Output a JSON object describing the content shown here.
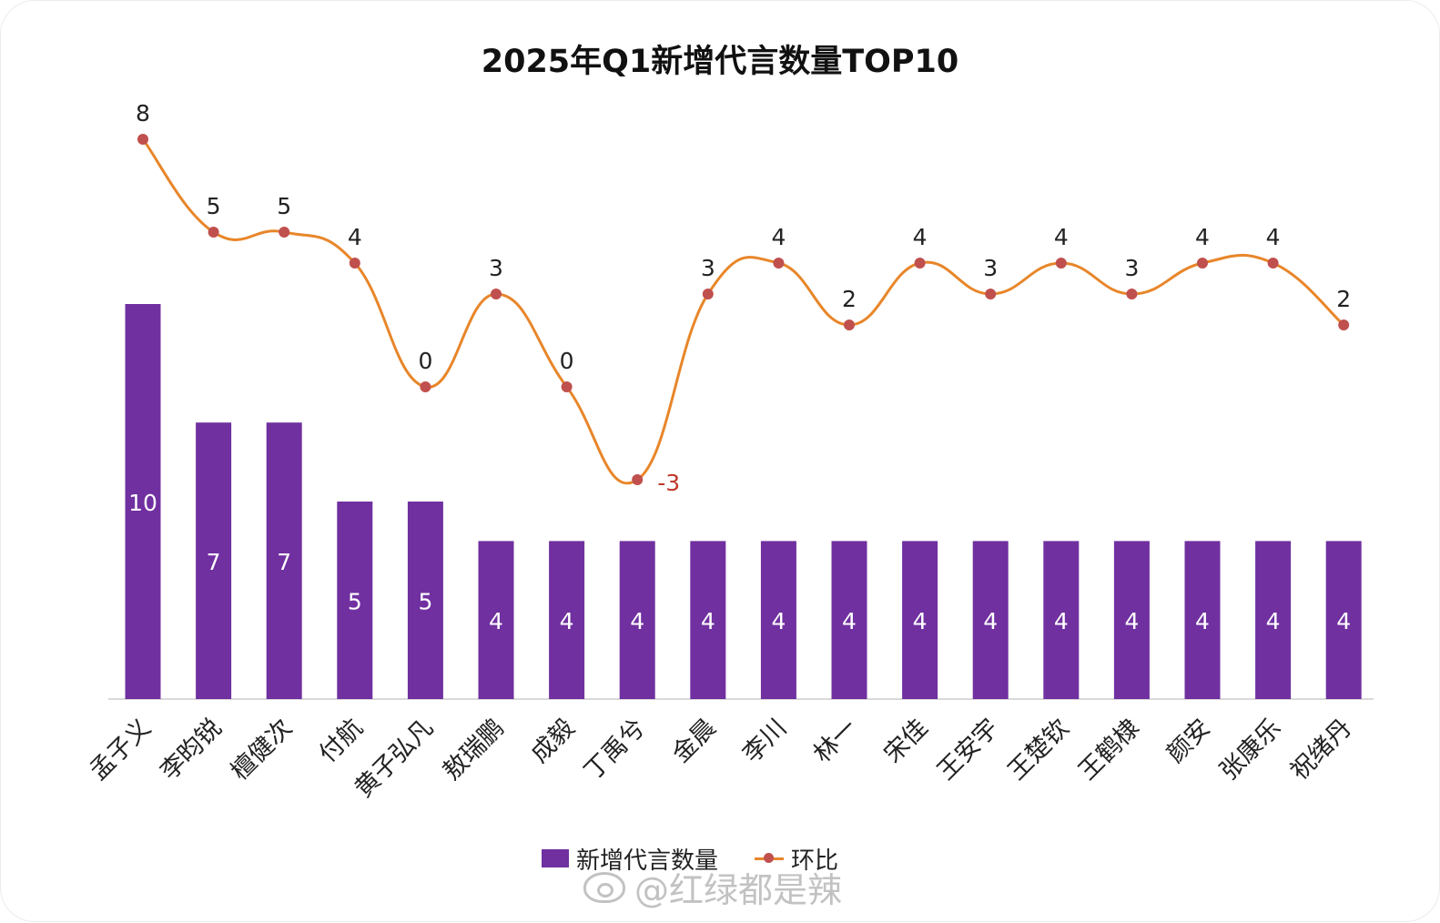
{
  "chart_data": {
    "type": "bar",
    "title": "2025年Q1新增代言数量TOP10",
    "categories": [
      "孟子义",
      "李昀锐",
      "檀健次",
      "付航",
      "黄子弘凡",
      "敖瑞鹏",
      "成毅",
      "丁禹兮",
      "金晨",
      "李川",
      "林一",
      "宋佳",
      "王安宇",
      "王楚钦",
      "王鹤棣",
      "颜安",
      "张康乐",
      "祝绪丹"
    ],
    "series": [
      {
        "name": "新增代言数量",
        "type": "bar",
        "color": "#7030a0",
        "values": [
          10,
          7,
          7,
          5,
          5,
          4,
          4,
          4,
          4,
          4,
          4,
          4,
          4,
          4,
          4,
          4,
          4,
          4
        ]
      },
      {
        "name": "环比",
        "type": "line",
        "color": "#e8862a",
        "marker_color": "#c0504d",
        "values": [
          8,
          5,
          5,
          4,
          0,
          3,
          0,
          -3,
          3,
          4,
          2,
          4,
          3,
          4,
          3,
          4,
          4,
          2
        ]
      }
    ],
    "grid": false,
    "legend": "bottom-center"
  },
  "legend": {
    "bar_label": "新增代言数量",
    "line_label": "环比"
  },
  "watermark": {
    "text": "@红绿都是辣"
  }
}
